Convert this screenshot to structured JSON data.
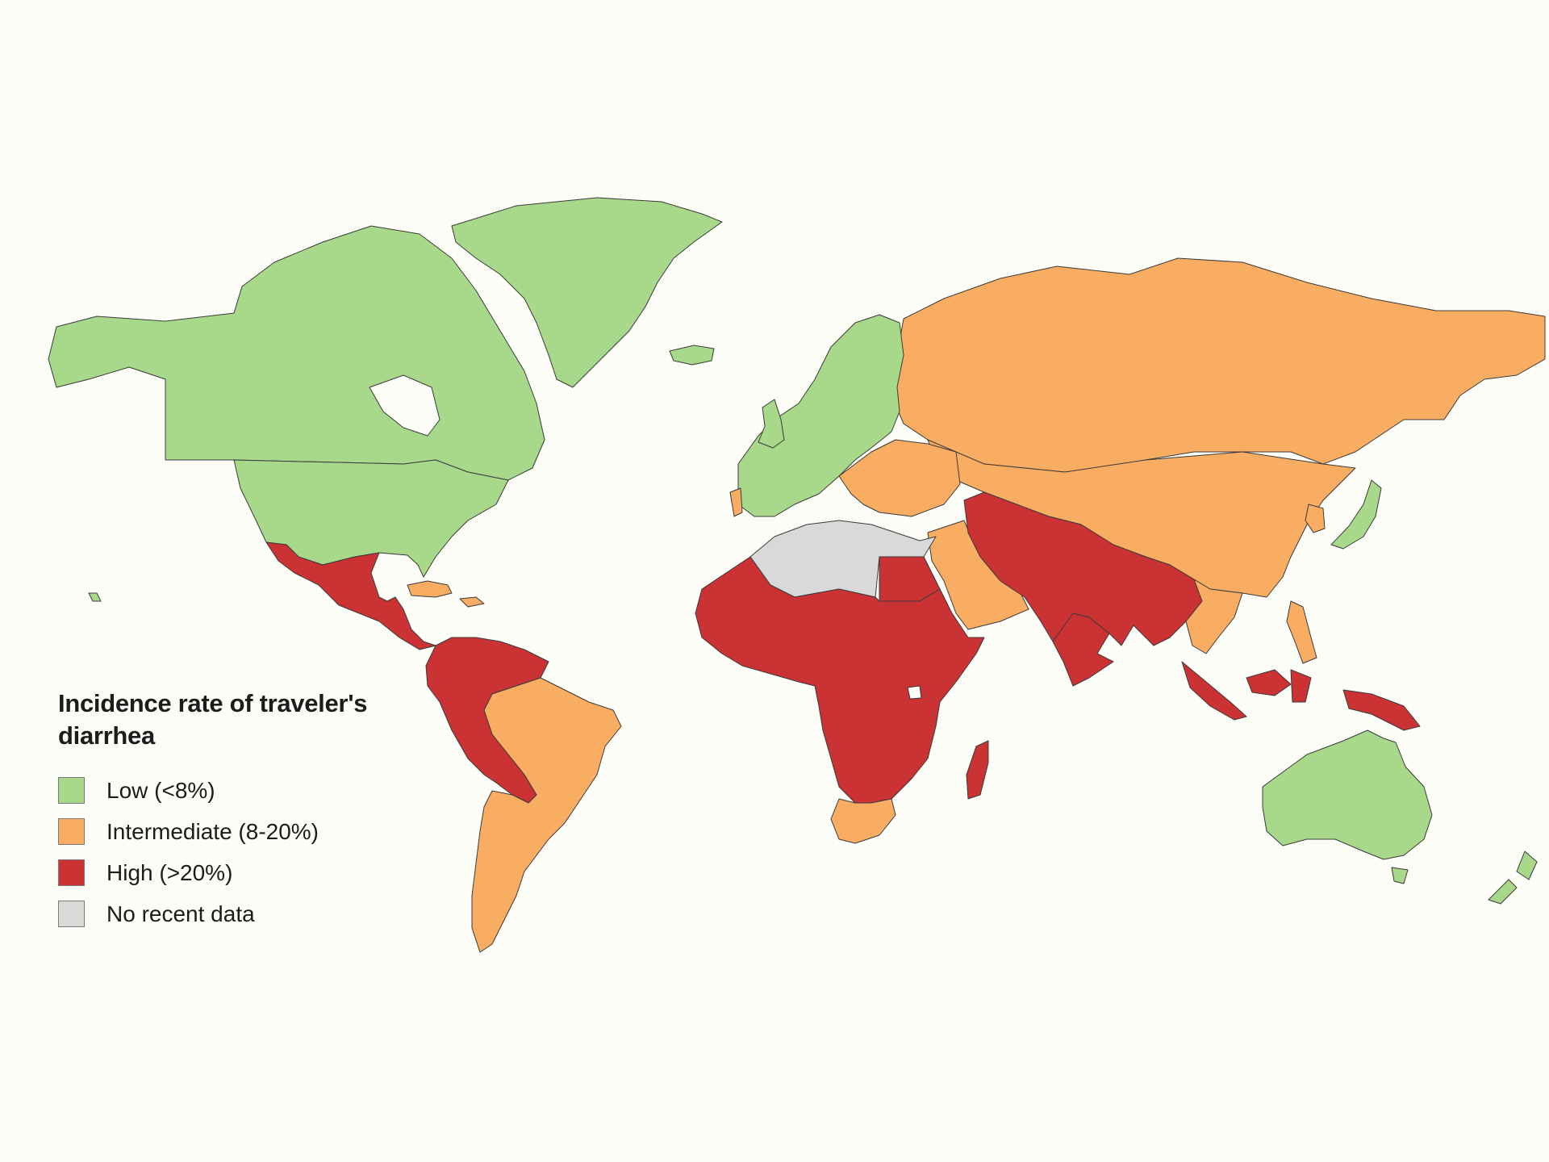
{
  "legend": {
    "title": "Incidence rate of traveler's diarrhea",
    "items": [
      {
        "key": "low",
        "label": "Low (<8%)",
        "color": "#a8d98a"
      },
      {
        "key": "intermediate",
        "label": "Intermediate (8-20%)",
        "color": "#f8ad62"
      },
      {
        "key": "high",
        "label": "High (>20%)",
        "color": "#cb3234"
      },
      {
        "key": "none",
        "label": "No recent data",
        "color": "#d9d9d9"
      }
    ]
  },
  "colors": {
    "background": "#fdfdf8",
    "border": "#3a3a3a"
  }
}
